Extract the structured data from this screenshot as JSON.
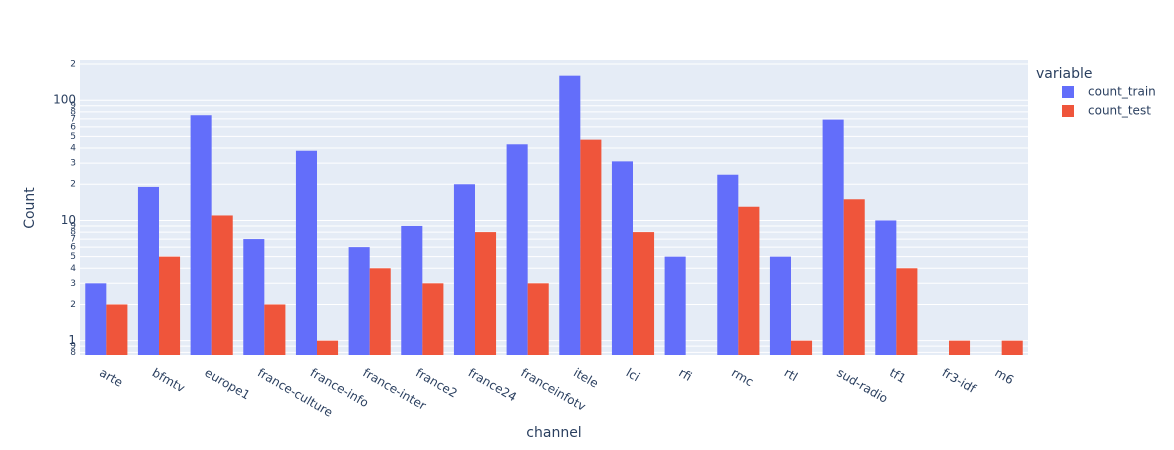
{
  "chart_data": {
    "type": "bar",
    "x_label": "channel",
    "y_label": "Count",
    "categories": [
      "arte",
      "bfmtv",
      "europe1",
      "france-culture",
      "france-info",
      "france-inter",
      "france2",
      "france24",
      "franceinfotv",
      "itele",
      "lci",
      "rfi",
      "rmc",
      "rtl",
      "sud-radio",
      "tf1",
      "fr3-idf",
      "m6"
    ],
    "series": [
      {
        "name": "count_train",
        "color": "#636efa",
        "values": [
          3,
          19,
          75,
          7,
          38,
          6,
          9,
          20,
          43,
          160,
          31,
          5,
          24,
          5,
          69,
          10,
          null,
          null
        ]
      },
      {
        "name": "count_test",
        "color": "#ef553b",
        "values": [
          2,
          5,
          11,
          2,
          1,
          4,
          3,
          8,
          3,
          47,
          8,
          null,
          13,
          1,
          15,
          4,
          1,
          1
        ]
      }
    ],
    "legend_title": "variable",
    "legend_position": "right",
    "log_y": true,
    "grid": true,
    "ylim": [
      0.76,
      216
    ],
    "yticks": [
      {
        "value": 0.8,
        "label": "8"
      },
      {
        "value": 0.9,
        "label": "9"
      },
      1,
      2,
      3,
      4,
      5,
      6,
      7,
      8,
      9,
      10,
      {
        "value": 20,
        "label": "2"
      },
      {
        "value": 30,
        "label": "3"
      },
      {
        "value": 40,
        "label": "4"
      },
      {
        "value": 50,
        "label": "5"
      },
      {
        "value": 60,
        "label": "6"
      },
      {
        "value": 70,
        "label": "7"
      },
      {
        "value": 80,
        "label": "8"
      },
      {
        "value": 90,
        "label": "9"
      },
      100,
      {
        "value": 200,
        "label": "2"
      }
    ]
  }
}
